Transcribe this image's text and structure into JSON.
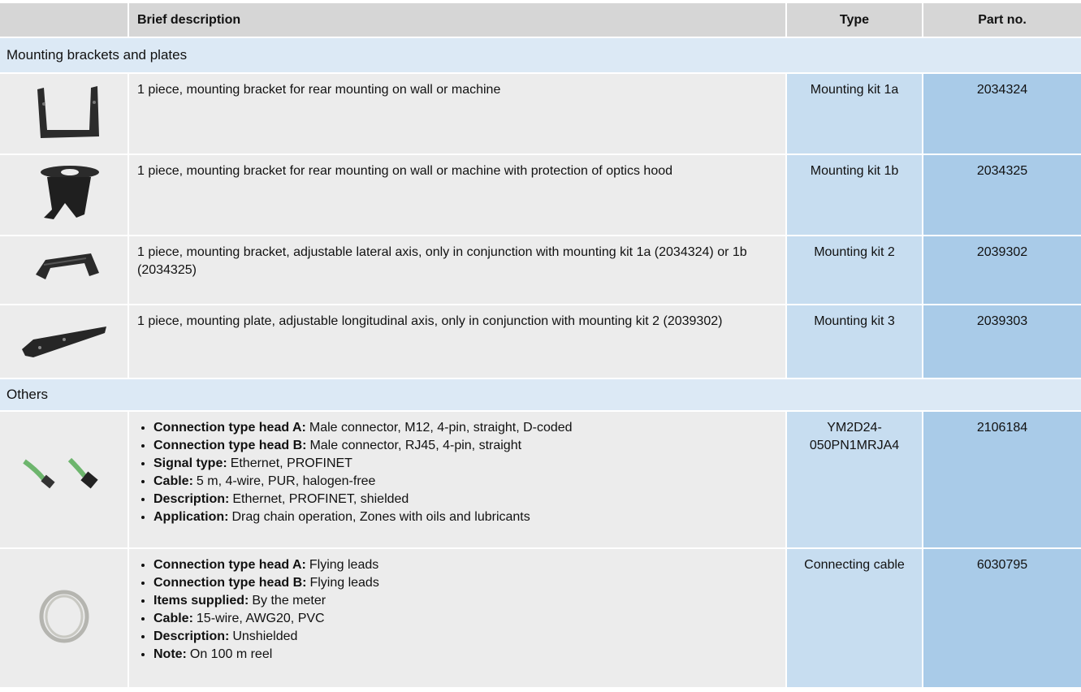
{
  "header": {
    "description": "Brief description",
    "type": "Type",
    "part_no": "Part no."
  },
  "sections": [
    {
      "title": "Mounting brackets and plates",
      "rows": [
        {
          "description": "1 piece, mounting bracket for rear mounting on wall or machine",
          "type": "Mounting kit 1a",
          "part_no": "2034324"
        },
        {
          "description": "1 piece, mounting bracket for rear mounting on wall or machine with protection of optics hood",
          "type": "Mounting kit 1b",
          "part_no": "2034325"
        },
        {
          "description": "1 piece, mounting bracket, adjustable lateral axis, only in conjunction with mounting kit 1a (2034324) or 1b (2034325)",
          "type": "Mounting kit 2",
          "part_no": "2039302"
        },
        {
          "description": "1 piece, mounting plate, adjustable longitudinal axis, only in conjunction with mounting kit 2 (2039302)",
          "type": "Mounting kit 3",
          "part_no": "2039303"
        }
      ]
    },
    {
      "title": "Others",
      "rows": [
        {
          "bullets": [
            {
              "label": "Connection type head A:",
              "text": "Male connector, M12, 4-pin, straight, D-coded"
            },
            {
              "label": "Connection type head B:",
              "text": "Male connector, RJ45, 4-pin, straight"
            },
            {
              "label": "Signal type:",
              "text": "Ethernet, PROFINET"
            },
            {
              "label": "Cable:",
              "text": "5 m, 4-wire, PUR, halogen-free"
            },
            {
              "label": "Description:",
              "text": "Ethernet, PROFINET, shielded"
            },
            {
              "label": "Application:",
              "text": "Drag chain operation, Zones with oils and lubricants"
            }
          ],
          "type": "YM2D24-050PN1MRJA4",
          "part_no": "2106184"
        },
        {
          "bullets": [
            {
              "label": "Connection type head A:",
              "text": "Flying leads"
            },
            {
              "label": "Connection type head B:",
              "text": "Flying leads"
            },
            {
              "label": "Items supplied:",
              "text": "By the meter"
            },
            {
              "label": "Cable:",
              "text": "15-wire, AWG20, PVC"
            },
            {
              "label": "Description:",
              "text": "Unshielded"
            },
            {
              "label": "Note:",
              "text": "On 100 m reel"
            }
          ],
          "type": "Connecting cable",
          "part_no": "6030795"
        }
      ]
    }
  ]
}
